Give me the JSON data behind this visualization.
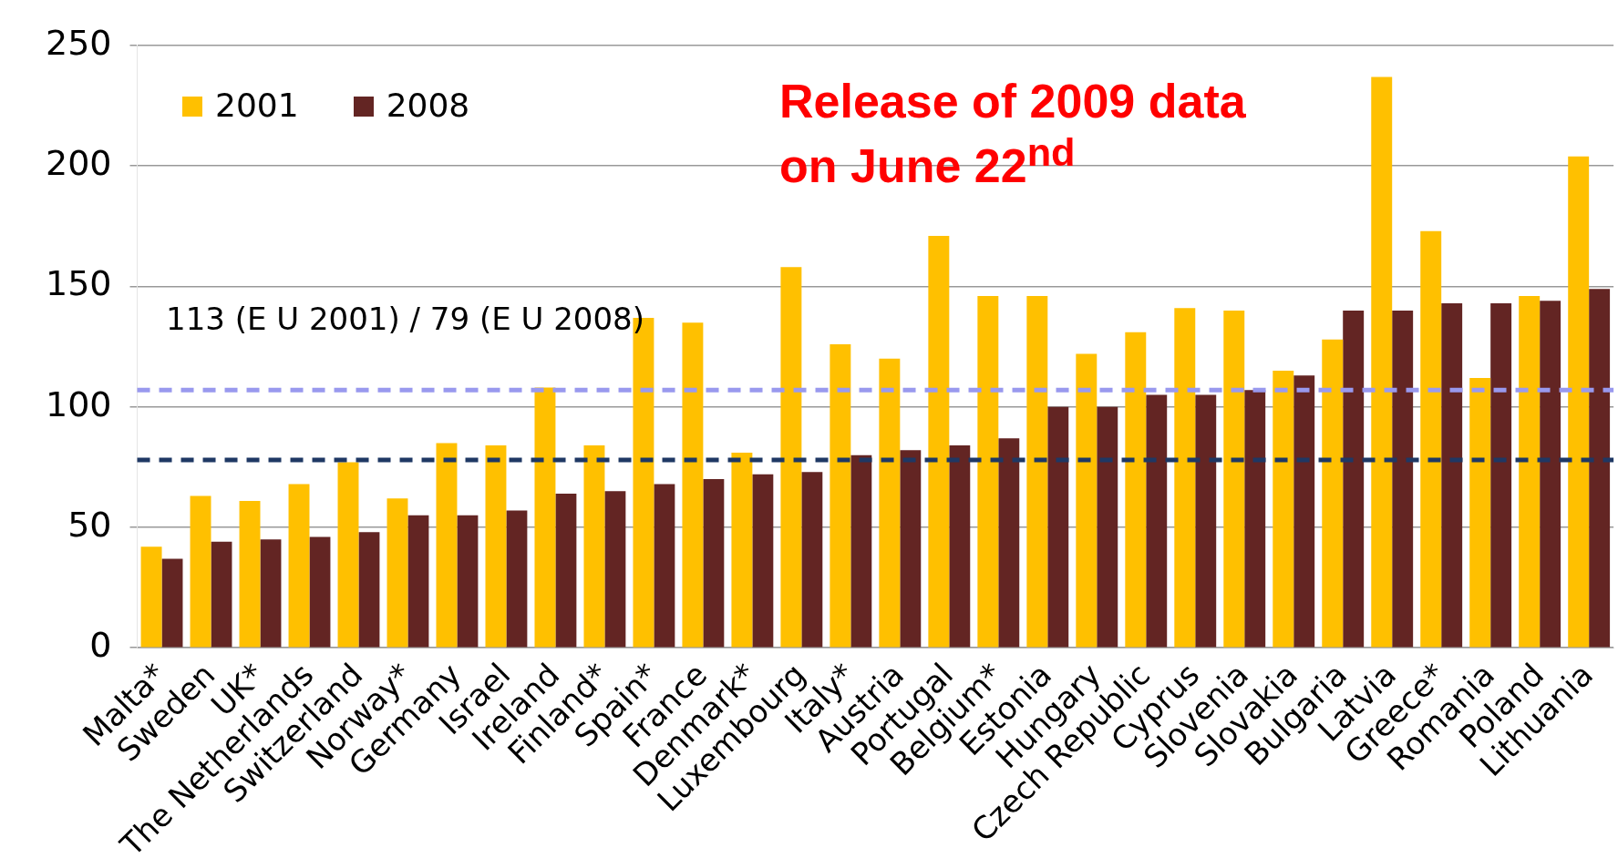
{
  "chart_data": {
    "type": "bar",
    "categories": [
      "Malta*",
      "Sweden",
      "UK*",
      "The Netherlands",
      "Switzerland",
      "Norway*",
      "Germany",
      "Israel",
      "Ireland",
      "Finland*",
      "Spain*",
      "France",
      "Denmark*",
      "Luxembourg",
      "Italy*",
      "Austria",
      "Portugal",
      "Belgium*",
      "Estonia",
      "Hungary",
      "Czech Republic",
      "Cyprus",
      "Slovenia",
      "Slovakia",
      "Bulgaria",
      "Latvia",
      "Greece*",
      "Romania",
      "Poland",
      "Lithuania"
    ],
    "series": [
      {
        "name": "2001",
        "color": "#ffc000",
        "values": [
          42,
          63,
          61,
          68,
          77,
          62,
          85,
          84,
          108,
          84,
          137,
          135,
          81,
          158,
          126,
          120,
          171,
          146,
          146,
          122,
          131,
          141,
          140,
          115,
          128,
          237,
          173,
          112,
          146,
          204
        ]
      },
      {
        "name": "2008",
        "color": "#632523",
        "values": [
          37,
          44,
          45,
          46,
          48,
          55,
          55,
          57,
          64,
          65,
          68,
          70,
          72,
          73,
          80,
          82,
          84,
          87,
          100,
          100,
          105,
          105,
          107,
          113,
          140,
          140,
          143,
          143,
          144,
          149
        ]
      }
    ],
    "ylim": [
      0,
      250
    ],
    "yticks": [
      0,
      50,
      100,
      150,
      200,
      250
    ],
    "grid": "y",
    "legend": "top left",
    "ref_lines": [
      {
        "axis": "y",
        "value": 107,
        "color": "#9999ee",
        "line_style": "dashed"
      },
      {
        "axis": "y",
        "value": 78,
        "color": "#1f3864",
        "line_style": "dashed"
      }
    ],
    "annotations": [
      "113 (E U 2001) / 79 (E U 2008)",
      "Release of 2009 data on June 22$^{nd}$"
    ]
  }
}
